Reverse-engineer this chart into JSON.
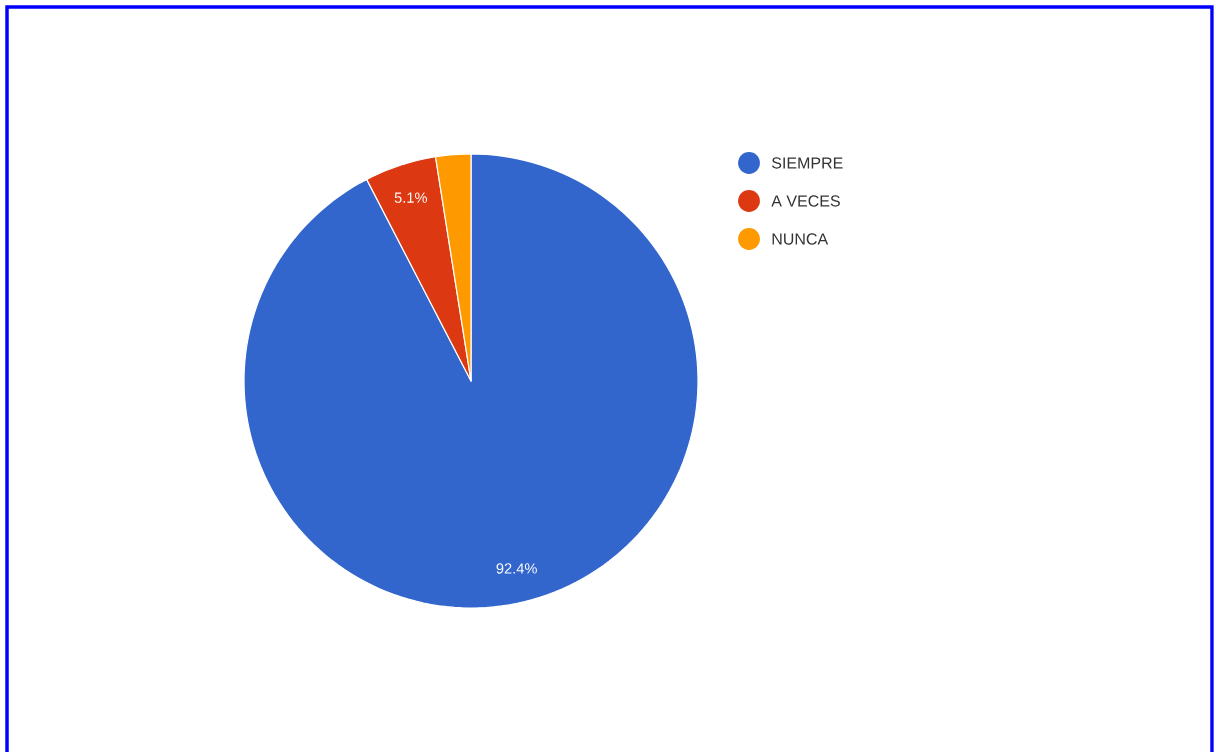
{
  "chart_data": {
    "type": "pie",
    "categories": [
      "SIEMPRE",
      "A VECES",
      "NUNCA"
    ],
    "values": [
      92.4,
      5.1,
      2.5
    ],
    "colors": [
      "#3366cc",
      "#dc3912",
      "#ff9900"
    ],
    "value_labels": [
      "92.4%",
      "5.1%",
      null
    ],
    "legend": "top right"
  }
}
